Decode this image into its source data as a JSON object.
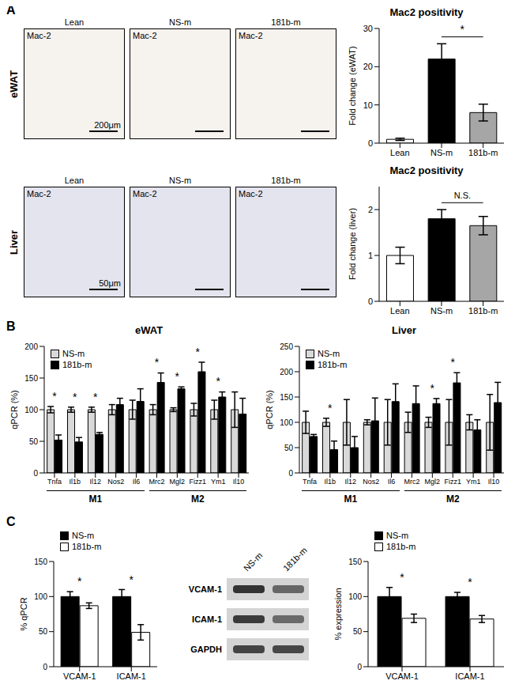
{
  "panel_labels": [
    "A",
    "B",
    "C"
  ],
  "micrographs": {
    "columns": [
      "Lean",
      "NS-m",
      "181b-m"
    ],
    "stain": "Mac-2",
    "rows": [
      {
        "tissue": "eWAT",
        "scale_bar": "200μm"
      },
      {
        "tissue": "Liver",
        "scale_bar": "50μm"
      }
    ]
  },
  "western_blot": {
    "lanes": [
      "NS-m",
      "181b-m"
    ],
    "bands": [
      "VCAM-1",
      "ICAM-1",
      "GAPDH"
    ]
  },
  "chart_data": [
    {
      "type": "bar",
      "title": "Mac2 positivity",
      "ylabel": "Fold change (eWAT)",
      "categories": [
        "Lean",
        "NS-m",
        "181b-m"
      ],
      "values": [
        1,
        22,
        8
      ],
      "errors": [
        0.3,
        4,
        2.2
      ],
      "colors": [
        "#ffffff",
        "#000000",
        "#a6a6a6"
      ],
      "ylim": [
        0,
        30
      ],
      "yticks": [
        0,
        10,
        20,
        30
      ],
      "annotations": [
        {
          "text": "*",
          "from": "NS-m",
          "to": "181b-m"
        }
      ]
    },
    {
      "type": "bar",
      "title": "Mac2 positivity",
      "ylabel": "Fold change (liver)",
      "categories": [
        "Lean",
        "NS-m",
        "181b-m"
      ],
      "values": [
        1,
        1.8,
        1.65
      ],
      "errors": [
        0.18,
        0.2,
        0.2
      ],
      "colors": [
        "#ffffff",
        "#000000",
        "#a6a6a6"
      ],
      "ylim": [
        0,
        2.5
      ],
      "yticks": [
        0,
        1,
        2
      ],
      "annotations": [
        {
          "text": "N.S.",
          "from": "NS-m",
          "to": "181b-m"
        }
      ]
    },
    {
      "type": "bar",
      "title": "eWAT",
      "ylabel": "qPCR (%)",
      "categories": [
        "Tnfa",
        "Il1b",
        "Il12",
        "Nos2",
        "Il6",
        "Mrc2",
        "Mgl2",
        "Fizz1",
        "Ym1",
        "Il10"
      ],
      "series": [
        {
          "name": "NS-m",
          "color": "#d9d9d9",
          "values": [
            100,
            100,
            100,
            100,
            100,
            100,
            100,
            100,
            100,
            100
          ],
          "errors": [
            5,
            4,
            4,
            8,
            15,
            8,
            3,
            10,
            15,
            28
          ]
        },
        {
          "name": "181b-m",
          "color": "#000000",
          "values": [
            52,
            49,
            61,
            108,
            113,
            143,
            133,
            160,
            120,
            93
          ],
          "errors": [
            8,
            7,
            3,
            10,
            20,
            15,
            3,
            15,
            8,
            25
          ]
        }
      ],
      "groups": [
        {
          "label": "M1",
          "categories": [
            "Tnfa",
            "Il1b",
            "Il12",
            "Nos2",
            "Il6"
          ]
        },
        {
          "label": "M2",
          "categories": [
            "Mrc2",
            "Mgl2",
            "Fizz1",
            "Ym1",
            "Il10"
          ]
        }
      ],
      "annotations": [
        {
          "text": "*",
          "category": "Tnfa"
        },
        {
          "text": "*",
          "category": "Il1b"
        },
        {
          "text": "*",
          "category": "Il12"
        },
        {
          "text": "*",
          "category": "Mrc2"
        },
        {
          "text": "*",
          "category": "Mgl2"
        },
        {
          "text": "*",
          "category": "Fizz1"
        },
        {
          "text": "*",
          "category": "Ym1"
        }
      ],
      "ylim": [
        0,
        200
      ],
      "yticks": [
        0,
        50,
        100,
        150,
        200
      ],
      "legend": "upper left"
    },
    {
      "type": "bar",
      "title": "Liver",
      "ylabel": "qPCR (%)",
      "categories": [
        "Tnfa",
        "Il1b",
        "Il12",
        "Nos2",
        "Il6",
        "Mrc2",
        "Mgl2",
        "Fizz1",
        "Ym1",
        "Il10"
      ],
      "series": [
        {
          "name": "NS-m",
          "color": "#d9d9d9",
          "values": [
            100,
            100,
            100,
            100,
            100,
            100,
            100,
            100,
            100,
            100
          ],
          "errors": [
            22,
            8,
            45,
            5,
            45,
            20,
            10,
            45,
            15,
            55
          ]
        },
        {
          "name": "181b-m",
          "color": "#000000",
          "values": [
            72,
            46,
            50,
            103,
            141,
            137,
            137,
            178,
            85,
            139
          ],
          "errors": [
            4,
            17,
            22,
            45,
            35,
            35,
            10,
            20,
            20,
            40
          ]
        }
      ],
      "groups": [
        {
          "label": "M1",
          "categories": [
            "Tnfa",
            "Il1b",
            "Il12",
            "Nos2",
            "Il6"
          ]
        },
        {
          "label": "M2",
          "categories": [
            "Mrc2",
            "Mgl2",
            "Fizz1",
            "Ym1",
            "Il10"
          ]
        }
      ],
      "annotations": [
        {
          "text": "*",
          "category": "Il1b"
        },
        {
          "text": "*",
          "category": "Mgl2"
        },
        {
          "text": "*",
          "category": "Fizz1"
        }
      ],
      "ylim": [
        0,
        250
      ],
      "yticks": [
        0,
        50,
        100,
        150,
        200,
        250
      ],
      "legend": "upper left"
    },
    {
      "type": "bar",
      "ylabel": "% qPCR",
      "categories": [
        "VCAM-1",
        "ICAM-1"
      ],
      "series": [
        {
          "name": "NS-m",
          "color": "#000000",
          "values": [
            100,
            100
          ],
          "errors": [
            7,
            10
          ]
        },
        {
          "name": "181b-m",
          "color": "#ffffff",
          "values": [
            87,
            49
          ],
          "errors": [
            4,
            11
          ]
        }
      ],
      "annotations": [
        {
          "text": "*",
          "category": "VCAM-1"
        },
        {
          "text": "*",
          "category": "ICAM-1"
        }
      ],
      "ylim": [
        0,
        150
      ],
      "yticks": [
        0,
        50,
        100,
        150
      ],
      "legend": "upper left"
    },
    {
      "type": "bar",
      "ylabel": "% expression",
      "categories": [
        "VCAM-1",
        "ICAM-1"
      ],
      "series": [
        {
          "name": "NS-m",
          "color": "#000000",
          "values": [
            100,
            100
          ],
          "errors": [
            13,
            6
          ]
        },
        {
          "name": "181b-m",
          "color": "#ffffff",
          "values": [
            69,
            68
          ],
          "errors": [
            6,
            5
          ]
        }
      ],
      "annotations": [
        {
          "text": "*",
          "category": "VCAM-1"
        },
        {
          "text": "*",
          "category": "ICAM-1"
        }
      ],
      "ylim": [
        0,
        150
      ],
      "yticks": [
        0,
        50,
        100,
        150
      ],
      "legend": "upper left"
    }
  ]
}
